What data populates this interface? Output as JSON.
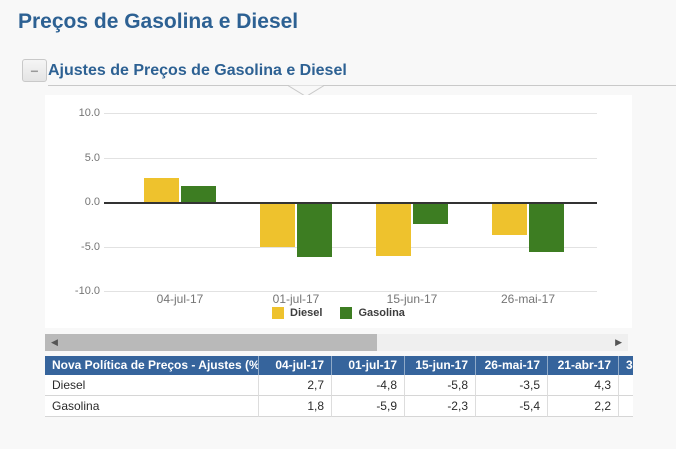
{
  "page": {
    "title": "Preços de Gasolina e Diesel"
  },
  "section": {
    "collapse_glyph": "−",
    "title": "Ajustes de Preços de Gasolina e Diesel"
  },
  "icons": {
    "scroll_left": "◀",
    "scroll_right": "▶"
  },
  "colors": {
    "accent_blue": "#2d6193",
    "table_header_bg": "#36649c",
    "diesel_yellow": "#eec22d",
    "gasolina_green": "#3d7d22",
    "page_bg": "#f8f8f8"
  },
  "chart_data": {
    "type": "bar",
    "title": "",
    "xlabel": "",
    "ylabel": "",
    "categories": [
      "04-jul-17",
      "01-jul-17",
      "15-jun-17",
      "26-mai-17"
    ],
    "series": [
      {
        "name": "Diesel",
        "color": "#eec22d",
        "values": [
          2.7,
          -4.8,
          -5.8,
          -3.5
        ]
      },
      {
        "name": "Gasolina",
        "color": "#3d7d22",
        "values": [
          1.8,
          -5.9,
          -2.3,
          -5.4
        ]
      }
    ],
    "ylim": [
      -10,
      10
    ],
    "yticks": [
      10,
      5,
      0,
      -5,
      -10
    ],
    "ytick_labels": [
      "10.0",
      "5.0",
      "0.0",
      "-5.0",
      "-10.0"
    ],
    "grid": true,
    "legend_position": "bottom"
  },
  "table": {
    "header": [
      "Nova Política de Preços - Ajustes (%)",
      "04-jul-17",
      "01-jul-17",
      "15-jun-17",
      "26-mai-17",
      "21-abr-17",
      "3"
    ],
    "rows": [
      {
        "label": "Diesel",
        "values": [
          "2,7",
          "-4,8",
          "-5,8",
          "-3,5",
          "4,3",
          ""
        ]
      },
      {
        "label": "Gasolina",
        "values": [
          "1,8",
          "-5,9",
          "-2,3",
          "-5,4",
          "2,2",
          ""
        ]
      }
    ]
  }
}
